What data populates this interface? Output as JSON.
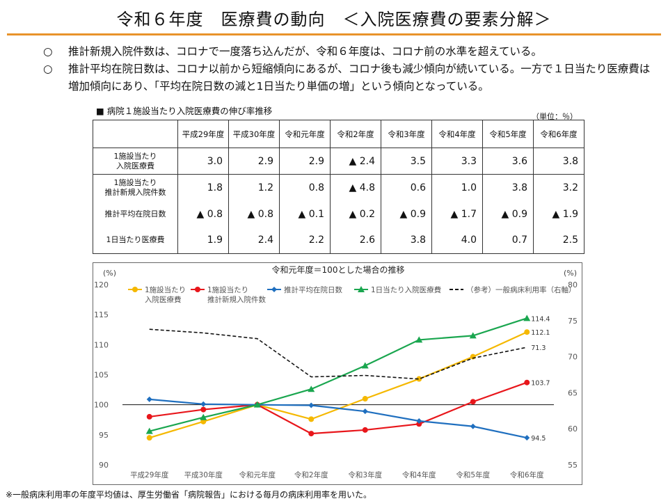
{
  "title": "令和６年度　医療費の動向　＜入院医療費の要素分解＞",
  "bullets": [
    {
      "mark": "○",
      "text": "推計新規入院件数は、コロナで一度落ち込んだが、令和６年度は、コロナ前の水準を超えている。"
    },
    {
      "mark": "○",
      "text": "推計平均在院日数は、コロナ以前から短縮傾向にあるが、コロナ後も減少傾向が続いている。一方で１日当たり医療費は増加傾向にあり、「平均在院日数の減と1日当たり単価の増」という傾向となっている。"
    }
  ],
  "table": {
    "heading": "■ 病院１施設当たり入院医療費の伸び率推移",
    "unit": "（単位：％）",
    "columns": [
      "平成29年度",
      "平成30年度",
      "令和元年度",
      "令和2年度",
      "令和3年度",
      "令和4年度",
      "令和5年度",
      "令和6年度"
    ],
    "rows": [
      {
        "label_lines": [
          "1施設当たり",
          "入院医療費"
        ],
        "values": [
          "3.0",
          "2.9",
          "2.9",
          "▲ 2.4",
          "3.5",
          "3.3",
          "3.6",
          "3.8"
        ]
      },
      {
        "label_lines": [
          "1施設当たり",
          "推計新規入院件数"
        ],
        "values": [
          "1.8",
          "1.2",
          "0.8",
          "▲ 4.8",
          "0.6",
          "1.0",
          "3.8",
          "3.2"
        ]
      },
      {
        "label_lines": [
          "推計平均在院日数"
        ],
        "values": [
          "▲ 0.8",
          "▲ 0.8",
          "▲ 0.1",
          "▲ 0.2",
          "▲ 0.9",
          "▲ 1.7",
          "▲ 0.9",
          "▲ 1.9"
        ]
      },
      {
        "label_lines": [
          "1日当たり医療費"
        ],
        "values": [
          "1.9",
          "2.4",
          "2.2",
          "2.6",
          "3.8",
          "4.0",
          "0.7",
          "2.5"
        ]
      }
    ]
  },
  "chart_data": {
    "type": "line",
    "title": "令和元年度＝100とした場合の推移",
    "left_unit": "(%)",
    "right_unit": "(%)",
    "categories": [
      "平成29年度",
      "平成30年度",
      "令和元年度",
      "令和2年度",
      "令和3年度",
      "令和4年度",
      "令和5年度",
      "令和6年度"
    ],
    "ylim": [
      90,
      120
    ],
    "yticks": [
      90,
      95,
      100,
      105,
      110,
      115,
      120
    ],
    "y2lim": [
      55,
      80
    ],
    "y2ticks": [
      55,
      60,
      65,
      70,
      75,
      80
    ],
    "reference_line": 100,
    "series": [
      {
        "name": "1施設当たり入院医療費",
        "legend_lines": [
          "1施設当たり",
          "入院医療費"
        ],
        "color": "#f5b800",
        "marker": "circle",
        "axis": "left",
        "values": [
          94.5,
          97.2,
          100,
          97.6,
          101.0,
          104.3,
          108.0,
          112.1
        ],
        "end_label": "112.1"
      },
      {
        "name": "1施設当たり推計新規入院件数",
        "legend_lines": [
          "1施設当たり",
          "推計新規入院件数"
        ],
        "color": "#e8161b",
        "marker": "circle",
        "axis": "left",
        "values": [
          98.0,
          99.2,
          100,
          95.2,
          95.8,
          96.8,
          100.5,
          103.7
        ],
        "end_label": "103.7"
      },
      {
        "name": "推計平均在院日数",
        "legend_lines": [
          "推計平均在院日数"
        ],
        "color": "#1f6fbf",
        "marker": "diamond",
        "axis": "left",
        "values": [
          100.9,
          100.1,
          100,
          99.9,
          98.9,
          97.3,
          96.4,
          94.5
        ],
        "end_label": "94.5"
      },
      {
        "name": "1日当たり入院医療費",
        "legend_lines": [
          "1日当たり入院医療費"
        ],
        "color": "#1aa64f",
        "marker": "triangle",
        "axis": "left",
        "values": [
          95.6,
          97.9,
          100,
          102.6,
          106.5,
          110.8,
          111.5,
          114.4
        ],
        "end_label": "114.4"
      },
      {
        "name": "（参考）一般病床利用率（右軸）",
        "legend_lines": [
          "（参考）一般病床利用率（右軸）"
        ],
        "color": "#111111",
        "marker": "none",
        "dashed": true,
        "axis": "right",
        "values": [
          73.8,
          73.3,
          72.5,
          67.2,
          67.4,
          66.9,
          69.8,
          71.3
        ],
        "end_label": "71.3"
      }
    ]
  },
  "footnote": "※一般病床利用率の年度平均値は、厚生労働省「病院報告」における毎月の病床利用率を用いた。"
}
